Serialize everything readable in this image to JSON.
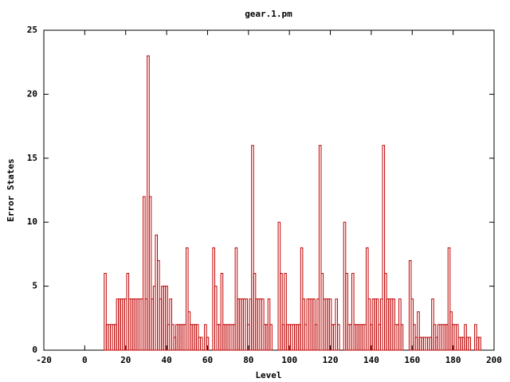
{
  "chart_data": {
    "type": "histogram",
    "title": "gear.1.pm",
    "xlabel": "Level",
    "ylabel": "Error States",
    "color": "#c00000",
    "x": [
      10,
      11,
      12,
      13,
      14,
      15,
      16,
      17,
      18,
      19,
      20,
      21,
      22,
      23,
      24,
      25,
      26,
      27,
      28,
      29,
      30,
      31,
      32,
      33,
      34,
      35,
      36,
      37,
      38,
      39,
      40,
      41,
      42,
      43,
      44,
      45,
      46,
      47,
      48,
      49,
      50,
      51,
      52,
      53,
      54,
      55,
      56,
      57,
      58,
      59,
      60,
      61,
      62,
      63,
      64,
      65,
      66,
      67,
      68,
      69,
      70,
      71,
      72,
      73,
      74,
      75,
      76,
      77,
      78,
      79,
      80,
      81,
      82,
      83,
      84,
      85,
      86,
      87,
      88,
      89,
      90,
      91,
      92,
      93,
      94,
      95,
      96,
      97,
      98,
      99,
      100,
      101,
      102,
      103,
      104,
      105,
      106,
      107,
      108,
      109,
      110,
      111,
      112,
      113,
      114,
      115,
      116,
      117,
      118,
      119,
      120,
      121,
      122,
      123,
      124,
      125,
      126,
      127,
      128,
      129,
      130,
      131,
      132,
      133,
      134,
      135,
      136,
      137,
      138,
      139,
      140,
      141,
      142,
      143,
      144,
      145,
      146,
      147,
      148,
      149,
      150,
      151,
      152,
      153,
      154,
      155,
      156,
      157,
      158,
      159,
      160,
      161,
      162,
      163,
      164,
      165,
      166,
      167,
      168,
      169,
      170,
      171,
      172,
      173,
      174,
      175,
      176,
      177,
      178,
      179,
      180,
      181,
      182,
      183,
      184,
      185,
      186,
      187,
      188,
      189,
      190,
      191,
      192,
      193
    ],
    "values": [
      6,
      2,
      2,
      2,
      2,
      2,
      4,
      4,
      4,
      4,
      4,
      6,
      4,
      4,
      4,
      4,
      4,
      4,
      4,
      12,
      4,
      23,
      12,
      4,
      5,
      9,
      7,
      4,
      5,
      5,
      5,
      2,
      4,
      2,
      1,
      2,
      2,
      2,
      2,
      2,
      8,
      3,
      2,
      2,
      2,
      2,
      1,
      1,
      0,
      2,
      1,
      0,
      0,
      8,
      5,
      2,
      2,
      6,
      2,
      2,
      2,
      2,
      2,
      2,
      8,
      4,
      4,
      4,
      4,
      4,
      2,
      4,
      16,
      6,
      4,
      4,
      4,
      4,
      2,
      2,
      4,
      2,
      0,
      0,
      0,
      10,
      6,
      2,
      6,
      2,
      2,
      2,
      2,
      2,
      2,
      2,
      8,
      4,
      2,
      4,
      4,
      4,
      4,
      2,
      4,
      16,
      6,
      4,
      4,
      4,
      4,
      2,
      2,
      4,
      2,
      0,
      0,
      10,
      6,
      2,
      2,
      6,
      2,
      2,
      2,
      2,
      2,
      2,
      8,
      4,
      2,
      4,
      4,
      4,
      2,
      4,
      16,
      6,
      4,
      4,
      4,
      4,
      2,
      2,
      4,
      2,
      0,
      0,
      0,
      7,
      4,
      2,
      1,
      3,
      1,
      1,
      1,
      1,
      1,
      1,
      4,
      2,
      1,
      2,
      2,
      2,
      2,
      2,
      8,
      3,
      2,
      2,
      2,
      1,
      1,
      1,
      2,
      1,
      1,
      0,
      0,
      2,
      1,
      1
    ],
    "xlim": [
      -20,
      200
    ],
    "xticks": [
      -20,
      0,
      20,
      40,
      60,
      80,
      100,
      120,
      140,
      160,
      180,
      200
    ],
    "ylim": [
      0,
      25
    ],
    "yticks": [
      0,
      5,
      10,
      15,
      20,
      25
    ]
  }
}
